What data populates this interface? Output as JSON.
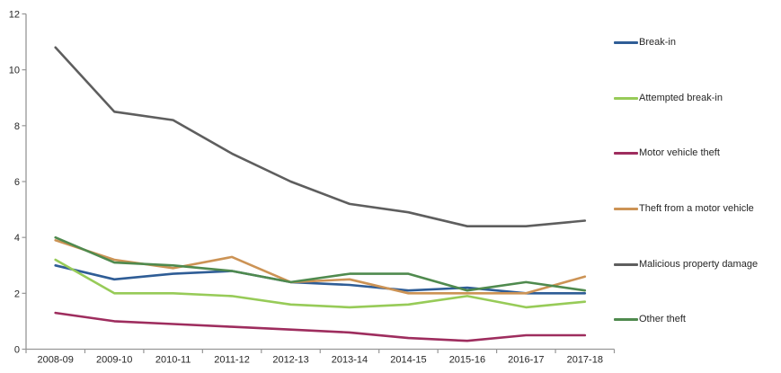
{
  "chart_data": {
    "type": "line",
    "title": "",
    "xlabel": "",
    "ylabel": "",
    "ylim": [
      0,
      12
    ],
    "ytick_step": 2,
    "y_tick_labels": [
      "0",
      "2",
      "4",
      "6",
      "8",
      "10",
      "12"
    ],
    "grid": false,
    "legend_position": "right",
    "categories": [
      "2008-09",
      "2009-10",
      "2010-11",
      "2011-12",
      "2012-13",
      "2013-14",
      "2014-15",
      "2015-16",
      "2016-17",
      "2017-18"
    ],
    "series": [
      {
        "name": "Break-in",
        "color": "#2F5D96",
        "values": [
          3.0,
          2.5,
          2.7,
          2.8,
          2.4,
          2.3,
          2.1,
          2.2,
          2.0,
          2.0
        ]
      },
      {
        "name": "Attempted break-in",
        "color": "#97CB58",
        "values": [
          3.2,
          2.0,
          2.0,
          1.9,
          1.6,
          1.5,
          1.6,
          1.9,
          1.5,
          1.7
        ]
      },
      {
        "name": "Motor vehicle theft",
        "color": "#9E2D5E",
        "values": [
          1.3,
          1.0,
          0.9,
          0.8,
          0.7,
          0.6,
          0.4,
          0.3,
          0.5,
          0.5
        ]
      },
      {
        "name": "Theft from a motor vehicle",
        "color": "#CC9355",
        "values": [
          3.9,
          3.2,
          2.9,
          3.3,
          2.4,
          2.5,
          2.0,
          2.0,
          2.0,
          2.6
        ]
      },
      {
        "name": "Malicious property damage",
        "color": "#5E5E5E",
        "values": [
          10.8,
          8.5,
          8.2,
          7.0,
          6.0,
          5.2,
          4.9,
          4.4,
          4.4,
          4.6
        ]
      },
      {
        "name": "Other theft",
        "color": "#4F8A4E",
        "values": [
          4.0,
          3.1,
          3.0,
          2.8,
          2.4,
          2.7,
          2.7,
          2.1,
          2.4,
          2.1
        ]
      }
    ]
  }
}
